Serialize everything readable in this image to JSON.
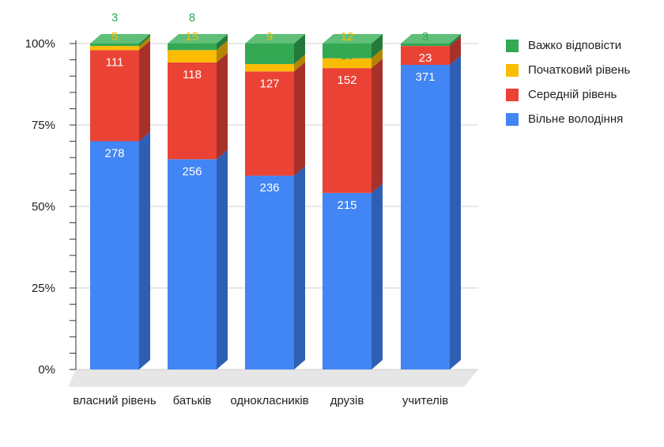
{
  "chart_data": {
    "type": "bar",
    "stacked": "percent",
    "style": "3d",
    "categories": [
      "власний рівень",
      "батьків",
      "однокласників",
      "друзів",
      "учителів"
    ],
    "series": [
      {
        "name": "Вільне володіння",
        "color": "#4285f4",
        "side_color": "#2f5fb3",
        "top_color": "#6a9ef7",
        "label_color": "#ffffff",
        "values": [
          278,
          256,
          236,
          215,
          371
        ]
      },
      {
        "name": "Середній рівень",
        "color": "#ea4335",
        "side_color": "#a8302a",
        "top_color": "#f06a5f",
        "label_color": "#ffffff",
        "values": [
          111,
          118,
          127,
          152,
          23
        ]
      },
      {
        "name": "Початковий рівень",
        "color": "#fbbc04",
        "side_color": "#b38703",
        "top_color": "#fccf4d",
        "label_color": "#fbbc04",
        "values": [
          5,
          15,
          9,
          12,
          0
        ]
      },
      {
        "name": "Важко відповісти",
        "color": "#34a853",
        "side_color": "#247a3b",
        "top_color": "#5fbf78",
        "label_color": "#34a853",
        "values": [
          3,
          8,
          25,
          18,
          3
        ]
      }
    ],
    "legend_order": [
      "Важко відповісти",
      "Початковий рівень",
      "Середній рівень",
      "Вільне володіння"
    ],
    "y_ticks": [
      "0%",
      "25%",
      "50%",
      "75%",
      "100%"
    ],
    "ylim": [
      0,
      100
    ],
    "grid": true,
    "legend_position": "right"
  }
}
